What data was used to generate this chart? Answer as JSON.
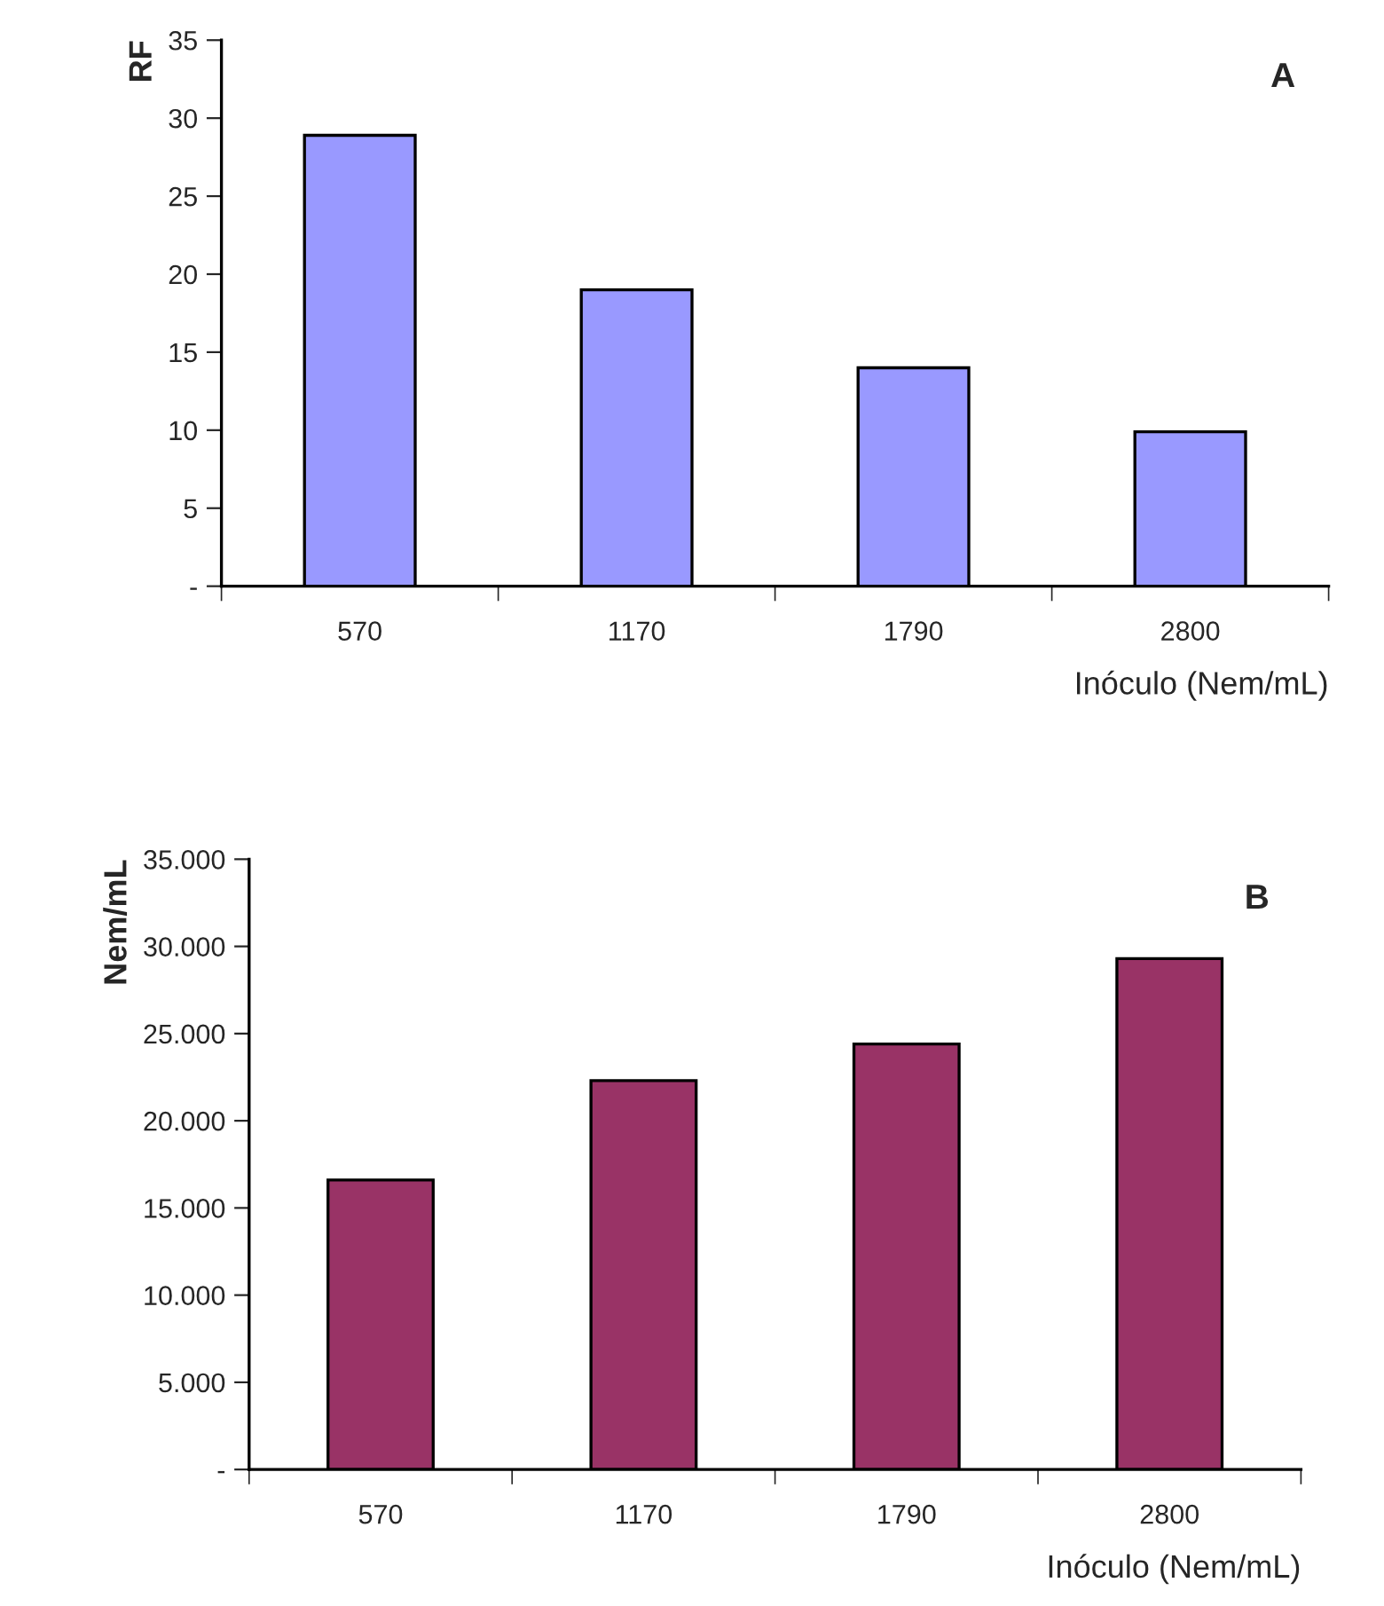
{
  "chart_data": [
    {
      "type": "bar",
      "ylabel": "RF",
      "xlabel": "Inóculo (Nem/mL)",
      "annotations": [
        "A"
      ],
      "categories": [
        "570",
        "1170",
        "1790",
        "2800"
      ],
      "series": [
        {
          "color": "#9999ff",
          "values": [
            28.9,
            19.0,
            14.0,
            9.9
          ]
        }
      ],
      "ylim": [
        0,
        35
      ],
      "yticks": [
        {
          "value": 0,
          "label": "-"
        },
        5,
        10,
        15,
        20,
        25,
        30,
        35
      ],
      "grid": false,
      "legend": false
    },
    {
      "type": "bar",
      "ylabel": "Nem/mL",
      "xlabel": "Inóculo (Nem/mL)",
      "annotations": [
        "B"
      ],
      "categories": [
        "570",
        "1170",
        "1790",
        "2800"
      ],
      "series": [
        {
          "color": "#993366",
          "values": [
            16600,
            22300,
            24400,
            29300
          ]
        }
      ],
      "ylim": [
        0,
        35000
      ],
      "yticks": [
        {
          "value": 0,
          "label": "-"
        },
        {
          "value": 5000,
          "label": "5.000"
        },
        {
          "value": 10000,
          "label": "10.000"
        },
        {
          "value": 15000,
          "label": "15.000"
        },
        {
          "value": 20000,
          "label": "20.000"
        },
        {
          "value": 25000,
          "label": "25.000"
        },
        {
          "value": 30000,
          "label": "30.000"
        },
        {
          "value": 35000,
          "label": "35.000"
        }
      ],
      "grid": false,
      "legend": false
    }
  ]
}
